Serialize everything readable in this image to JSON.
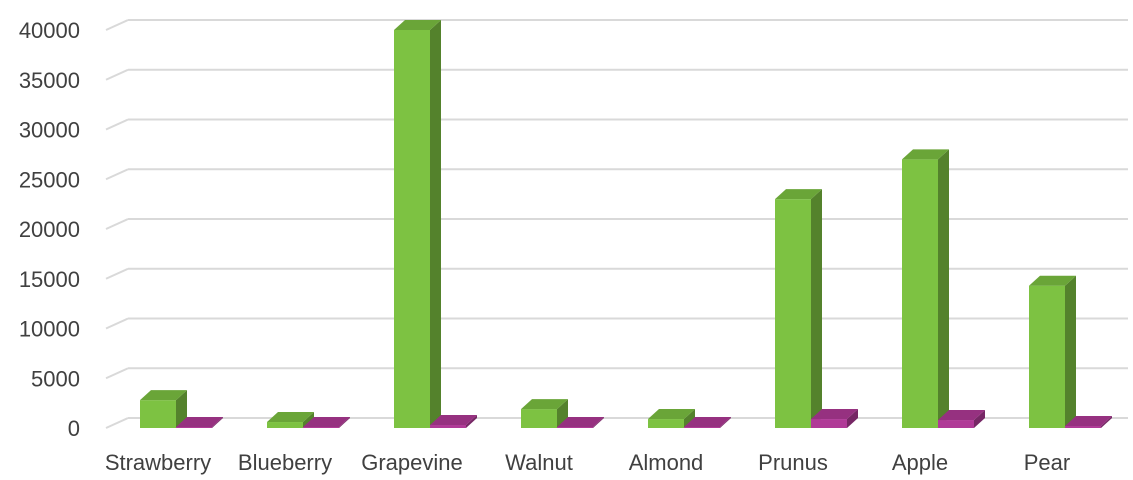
{
  "chart_data": {
    "type": "bar",
    "style": "3d-clustered-column",
    "categories": [
      "Strawberry",
      "Blueberry",
      "Grapevine",
      "Walnut",
      "Almond",
      "Prunus",
      "Apple",
      "Pear"
    ],
    "series": [
      {
        "values": [
          2800,
          600,
          40000,
          1900,
          900,
          23000,
          27000,
          14300
        ],
        "color": "#7DC242"
      },
      {
        "values": [
          100,
          100,
          300,
          100,
          100,
          900,
          800,
          200
        ],
        "color": "#B03A97"
      }
    ],
    "yticks": [
      0,
      5000,
      10000,
      15000,
      20000,
      25000,
      30000,
      35000,
      40000
    ],
    "ylim": [
      0,
      40000
    ],
    "grid": true,
    "legend": "none",
    "title": "",
    "xlabel": "",
    "ylabel": ""
  }
}
